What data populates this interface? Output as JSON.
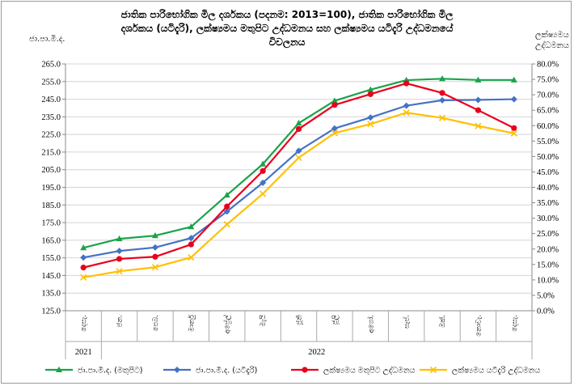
{
  "chart_data": {
    "type": "line",
    "title_lines": [
      "ජාතික පාරිභෝගික මිල දර්ශකය (පදනම: 2013=100), ජාතික පාරිභෝගික මිල",
      "දර්ශකය (යටිදැරි),  ලක්ෂ්‍යමය මතුපිට උද්ධමනය සහ ලක්ෂ්‍යමය යටිදැරි උද්ධමනයේ",
      "විචලනය"
    ],
    "ylabel_left": "ජා.පා.මි.ද.",
    "ylabel_right": [
      "ලක්ෂ්‍යමය",
      "උද්ධමනය"
    ],
    "categories": [
      "දෙසැ.",
      "ජන.",
      "පෙබ.",
      "මාර්තු",
      "අප්‍රේල්",
      "මැයි",
      "ජූනි",
      "ජූලි",
      "අගෝ.",
      "සැප්.",
      "ඔක්.",
      "නොවැ.",
      "දෙසැ."
    ],
    "year_labels": [
      "2021",
      "2022"
    ],
    "y_left": {
      "min": 125,
      "max": 265,
      "step": 10,
      "ticks": [
        "125.0",
        "135.0",
        "145.0",
        "155.0",
        "165.0",
        "175.0",
        "185.0",
        "195.0",
        "205.0",
        "215.0",
        "225.0",
        "235.0",
        "245.0",
        "255.0",
        "265.0"
      ]
    },
    "y_right": {
      "min": 0,
      "max": 80,
      "step": 5,
      "ticks": [
        "0.0%",
        "5.0%",
        "10.0%",
        "15.0%",
        "20.0%",
        "25.0%",
        "30.0%",
        "35.0%",
        "40.0%",
        "45.0%",
        "50.0%",
        "55.0%",
        "60.0%",
        "65.0%",
        "70.0%",
        "75.0%",
        "80.0%"
      ]
    },
    "grid": "horizontal",
    "legend_position": "bottom",
    "series": [
      {
        "name": "ජා.පා.මි.ද. (මතුපිට)",
        "axis": "left",
        "color": "#1aa34a",
        "marker": "triangle",
        "values": [
          160.7,
          165.8,
          167.6,
          172.6,
          190.6,
          208.2,
          231.4,
          244.1,
          250.4,
          255.8,
          256.6,
          255.9,
          255.9
        ]
      },
      {
        "name": "ජා.පා.මි.ද. (යටිදැරි)",
        "axis": "left",
        "color": "#4472c4",
        "marker": "diamond",
        "values": [
          155.2,
          158.9,
          160.9,
          166.2,
          181.3,
          197.6,
          215.7,
          228.4,
          234.6,
          241.3,
          244.4,
          244.6,
          245.0
        ]
      },
      {
        "name": "ලක්ෂ්‍යමය මතුපිට උද්ධමනය",
        "axis": "right",
        "color": "#e8001c",
        "marker": "circle",
        "values": [
          14.0,
          16.8,
          17.5,
          21.5,
          33.8,
          45.3,
          58.9,
          66.7,
          70.2,
          73.7,
          70.6,
          65.0,
          59.2
        ]
      },
      {
        "name": "ලක්ෂ්‍යමය යටිදැරි උද්ධමනය",
        "axis": "right",
        "color": "#ffc000",
        "marker": "x",
        "values": [
          10.8,
          12.8,
          14.1,
          17.3,
          28.0,
          37.9,
          49.6,
          57.6,
          60.5,
          64.2,
          62.5,
          59.9,
          57.5
        ]
      }
    ]
  }
}
